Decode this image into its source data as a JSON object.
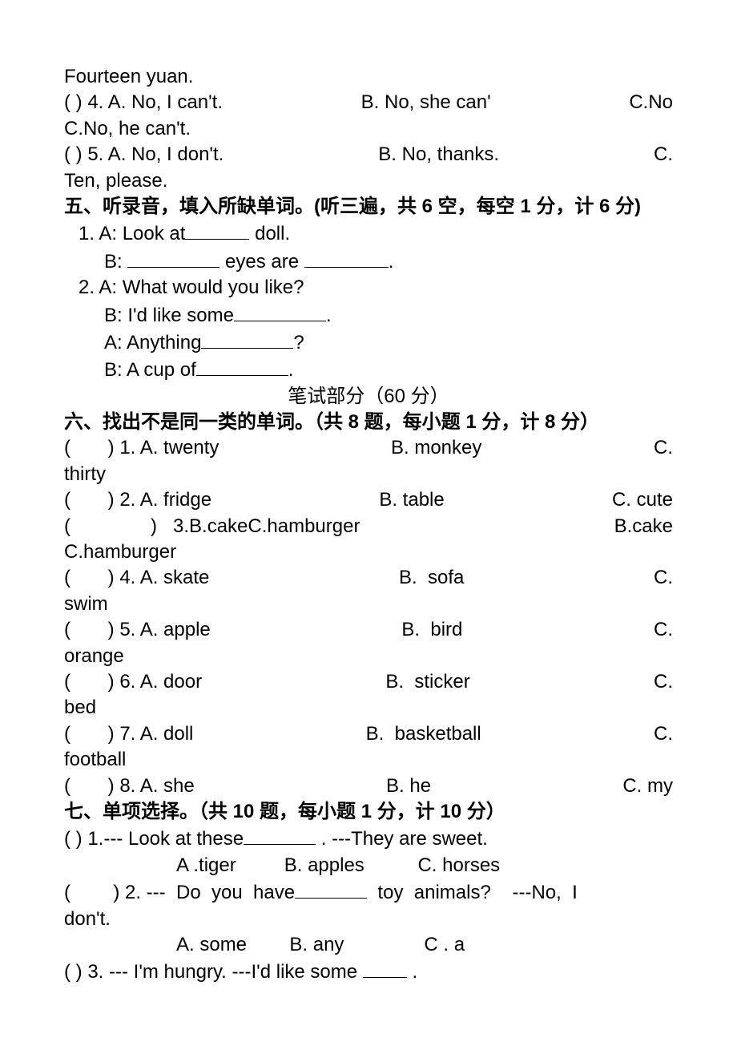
{
  "top": {
    "line1": "Fourteen yuan.",
    "q4": {
      "prefix": "(       ) 4. A. No, I can't.",
      "b": "B. No, she can'",
      "c": "C.No"
    },
    "q4_cont": "C.No, he can't.",
    "q5": {
      "prefix": "(       ) 5. A. No, I don't.",
      "b": "B. No, thanks.",
      "c": "C."
    },
    "q5_cont": "Ten, please."
  },
  "section5": {
    "heading": "五、听录音，填入所缺单词。(听三遍，共 6 空，每空 1 分，计 6 分)",
    "l1a": "1. A: Look at",
    "l1a_end": " doll.",
    "l1b_a": "B: ",
    "l1b_mid": " eyes are ",
    "l1b_end": ".",
    "l2a": "2. A: What would you like?",
    "l2b_a": "B: I'd like some",
    "l2b_end": ".",
    "l2c_a": "A: Anything",
    "l2c_end": "?",
    "l2d_a": "B: A cup of",
    "l2d_end": "."
  },
  "written_header": "笔试部分（60 分）",
  "section6": {
    "heading": "六、找出不是同一类的单词。（共 8 题，每小题 1 分，计 8 分）",
    "rows": [
      {
        "a": "(       ) 1. A. twenty",
        "b": "B. monkey",
        "c": "C.",
        "wrap": "thirty"
      },
      {
        "a": "(       ) 2. A. fridge",
        "b": "B. table",
        "c": "C. cute",
        "wrap": null
      },
      {
        "a": "(               )   3.B.cakeC.hamburger",
        "b": "",
        "c": "B.cake",
        "wrap": "C.hamburger"
      },
      {
        "a": "(       ) 4. A. skate",
        "b": "B.  sofa",
        "c": "C.",
        "wrap": "swim"
      },
      {
        "a": "(       ) 5. A. apple",
        "b": "B.  bird",
        "c": "C.",
        "wrap": "orange"
      },
      {
        "a": "(       ) 6. A. door",
        "b": "B.  sticker",
        "c": "C.",
        "wrap": "bed"
      },
      {
        "a": "(       ) 7. A. doll",
        "b": "B.  basketball",
        "c": "C.",
        "wrap": "football"
      },
      {
        "a": "(       ) 8. A. she",
        "b": "B. he",
        "c": "C. my",
        "wrap": null
      }
    ]
  },
  "section7": {
    "heading": "七、单项选择。（共 10 题，每小题 1 分，计 10 分）",
    "q1_a": "(       ) 1.--- Look at these",
    "q1_b": " . ---They are sweet.",
    "q1_opts": "A .tiger         B. apples          C. horses",
    "q2_a": "(        ) 2. ---  Do  you  have",
    "q2_b": "  toy  animals?    ---No,  I",
    "q2_wrap": "don't.",
    "q2_opts": "A. some        B. any               C . a",
    "q3_a": "(       ) 3. --- I'm hungry.   ---I'd like some ",
    "q3_b": " ."
  },
  "blanks": {
    "w60": 80,
    "w100": 115,
    "w90": 105,
    "w70": 90,
    "w50": 55
  }
}
